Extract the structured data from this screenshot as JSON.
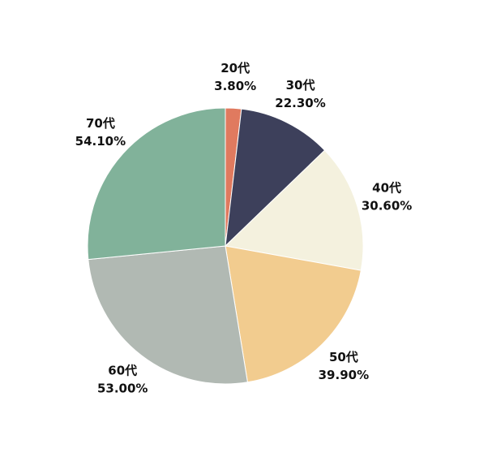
{
  "chart_data": {
    "type": "pie",
    "categories": [
      "20代",
      "30代",
      "40代",
      "50代",
      "60代",
      "70代"
    ],
    "values": [
      3.8,
      22.3,
      30.6,
      39.9,
      53.0,
      54.1
    ],
    "value_labels": [
      "3.80%",
      "22.30%",
      "30.60%",
      "39.90%",
      "53.00%",
      "54.10%"
    ],
    "colors": [
      "#e07a5f",
      "#3d405b",
      "#f4f1de",
      "#f2cc8f",
      "#b1b9b3",
      "#81b29a"
    ]
  }
}
